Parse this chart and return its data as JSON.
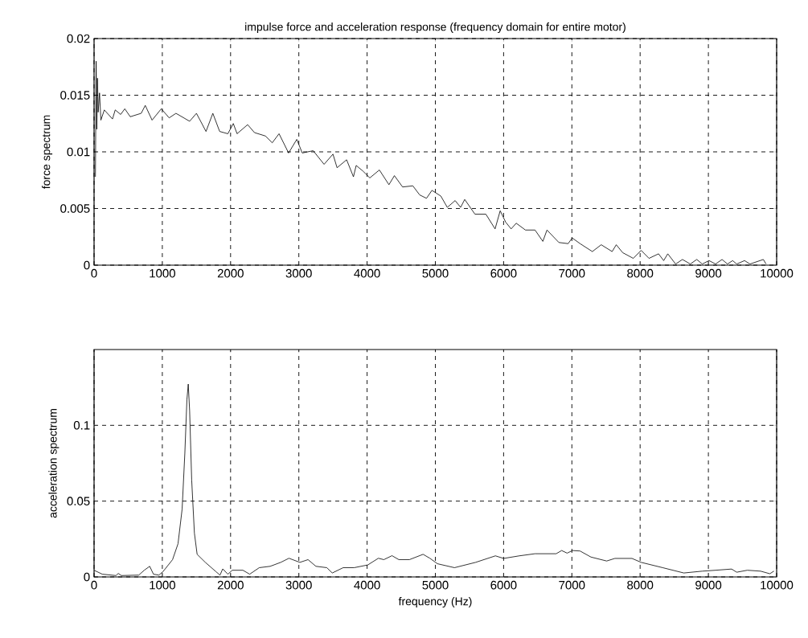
{
  "chart_data": [
    {
      "type": "line",
      "title": "impulse force and acceleration response (frequency domain for entire motor)",
      "ylabel": "force spectrum",
      "color": "#000000",
      "grid": true,
      "xlim": [
        0,
        10000
      ],
      "xticks": [
        0,
        1000,
        2000,
        3000,
        4000,
        5000,
        6000,
        7000,
        8000,
        9000,
        10000
      ],
      "ylim": [
        0,
        0.02
      ],
      "yticks": [
        0,
        0.005,
        0.01,
        0.015,
        0.02
      ],
      "x": [
        20,
        30,
        40,
        50,
        60,
        80,
        100,
        150,
        270,
        310,
        390,
        450,
        530,
        690,
        750,
        850,
        985,
        1100,
        1200,
        1400,
        1500,
        1640,
        1740,
        1840,
        1960,
        2040,
        2095,
        2250,
        2350,
        2510,
        2610,
        2710,
        2850,
        2970,
        3050,
        3210,
        3370,
        3500,
        3560,
        3700,
        3800,
        3840,
        3940,
        4040,
        4180,
        4320,
        4400,
        4520,
        4670,
        4770,
        4870,
        4950,
        5080,
        5175,
        5290,
        5370,
        5430,
        5580,
        5740,
        5875,
        5950,
        6030,
        6110,
        6185,
        6320,
        6460,
        6575,
        6635,
        6810,
        6945,
        7005,
        7120,
        7300,
        7430,
        7590,
        7650,
        7745,
        7900,
        8015,
        8130,
        8270,
        8345,
        8405,
        8520,
        8620,
        8735,
        8830,
        8910,
        9010,
        9105,
        9200,
        9280,
        9355,
        9415,
        9530,
        9610,
        9805,
        9845
      ],
      "values": [
        0.0078,
        0.018,
        0.012,
        0.0165,
        0.0135,
        0.0152,
        0.0128,
        0.0137,
        0.0129,
        0.0137,
        0.0133,
        0.0138,
        0.0131,
        0.0134,
        0.0141,
        0.0128,
        0.0138,
        0.013,
        0.0134,
        0.0127,
        0.0134,
        0.0118,
        0.0134,
        0.0118,
        0.0116,
        0.0125,
        0.0116,
        0.0124,
        0.0117,
        0.0114,
        0.0108,
        0.0116,
        0.0099,
        0.0111,
        0.0099,
        0.0101,
        0.0089,
        0.0098,
        0.0086,
        0.0093,
        0.0078,
        0.0088,
        0.0083,
        0.0077,
        0.0084,
        0.0071,
        0.0079,
        0.0069,
        0.007,
        0.0062,
        0.0059,
        0.0066,
        0.0061,
        0.0051,
        0.0057,
        0.0051,
        0.0058,
        0.0045,
        0.0045,
        0.0032,
        0.0048,
        0.0038,
        0.0032,
        0.0037,
        0.0031,
        0.0031,
        0.0021,
        0.0031,
        0.002,
        0.0019,
        0.0024,
        0.0019,
        0.0012,
        0.0018,
        0.0012,
        0.0018,
        0.0011,
        0.0006,
        0.0013,
        0.0006,
        0.001,
        0.0004,
        0.001,
        0.0001,
        0.0005,
        0.0001,
        0.0005,
        0.0001,
        0.0004,
        0.0001,
        0.0005,
        0.0001,
        0.0004,
        0.0001,
        0.0004,
        0.0001,
        0.0005,
        0.0001
      ]
    },
    {
      "type": "line",
      "xlabel": "frequency (Hz)",
      "ylabel": "acceleration spectrum",
      "color": "#000000",
      "grid": true,
      "xlim": [
        0,
        10000
      ],
      "xticks": [
        0,
        1000,
        2000,
        3000,
        4000,
        5000,
        6000,
        7000,
        8000,
        9000,
        10000
      ],
      "ylim": [
        0,
        0.15
      ],
      "yticks": [
        0,
        0.05,
        0.1
      ],
      "x": [
        0,
        120,
        320,
        355,
        400,
        655,
        735,
        815,
        870,
        950,
        1010,
        1150,
        1230,
        1290,
        1330,
        1360,
        1380,
        1400,
        1430,
        1470,
        1510,
        1630,
        1785,
        1845,
        1885,
        1960,
        2025,
        2180,
        2280,
        2420,
        2580,
        2735,
        2855,
        3015,
        3135,
        3250,
        3410,
        3490,
        3650,
        3810,
        4010,
        4165,
        4245,
        4365,
        4465,
        4620,
        4820,
        4920,
        5030,
        5280,
        5590,
        5880,
        6000,
        6230,
        6460,
        6770,
        6850,
        6930,
        7010,
        7120,
        7280,
        7510,
        7630,
        7880,
        8015,
        8330,
        8640,
        8910,
        9105,
        9340,
        9415,
        9570,
        9765,
        9900,
        9960
      ],
      "values": [
        0.0044,
        0.0018,
        0.0009,
        0.0023,
        0.0009,
        0.0012,
        0.0044,
        0.007,
        0.0018,
        0.0012,
        0.0035,
        0.0114,
        0.0219,
        0.0447,
        0.0816,
        0.1167,
        0.1272,
        0.1096,
        0.064,
        0.0289,
        0.0149,
        0.0096,
        0.0035,
        0.0012,
        0.0053,
        0.0018,
        0.0044,
        0.0044,
        0.0018,
        0.0061,
        0.007,
        0.0096,
        0.0123,
        0.0096,
        0.0114,
        0.007,
        0.0061,
        0.0026,
        0.0061,
        0.0061,
        0.0079,
        0.0123,
        0.0114,
        0.014,
        0.0114,
        0.0114,
        0.0149,
        0.0123,
        0.0087,
        0.0061,
        0.0096,
        0.0139,
        0.0122,
        0.0139,
        0.0153,
        0.0153,
        0.0174,
        0.0157,
        0.0174,
        0.0171,
        0.0131,
        0.0105,
        0.0122,
        0.0122,
        0.0096,
        0.0061,
        0.0026,
        0.0038,
        0.0044,
        0.0052,
        0.0031,
        0.0044,
        0.0038,
        0.0021,
        0.0038
      ]
    }
  ]
}
